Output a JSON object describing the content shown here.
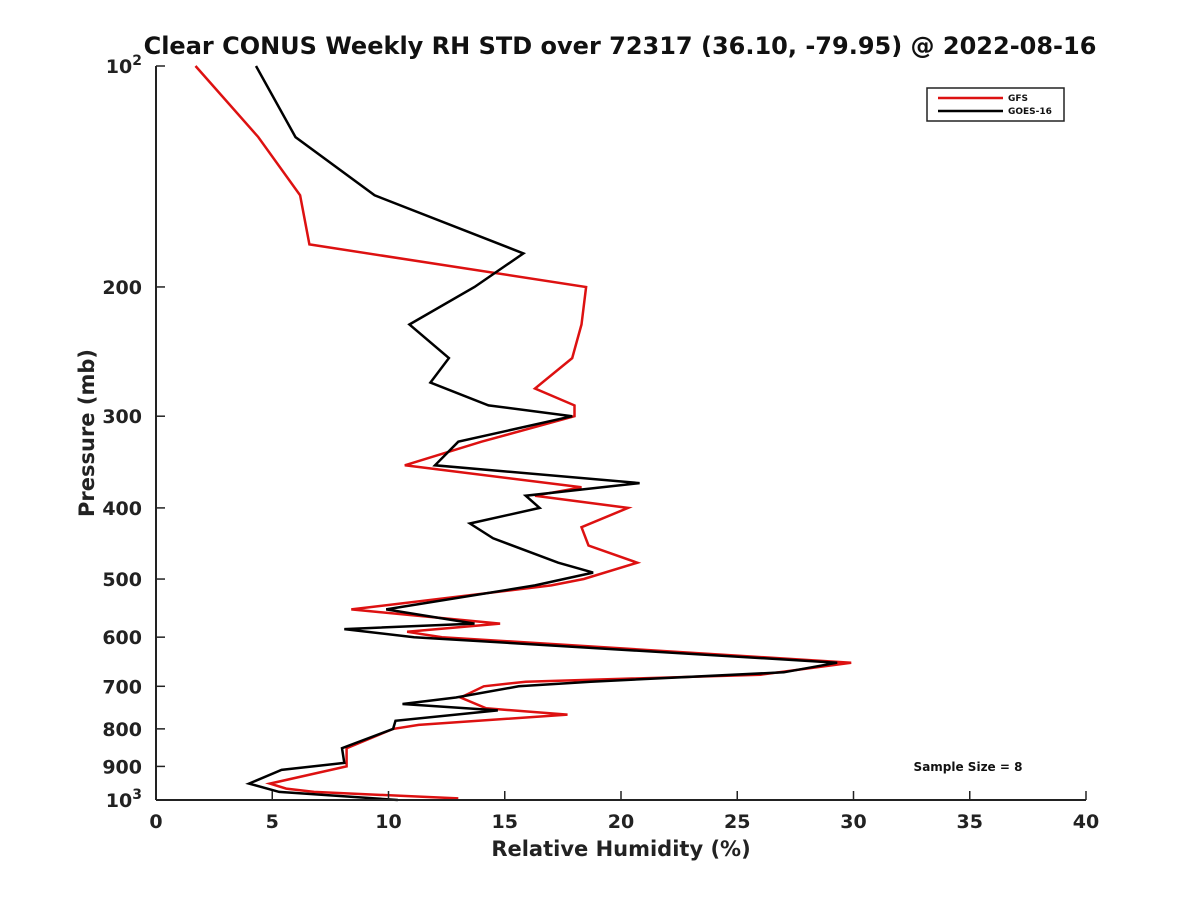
{
  "chart_data": {
    "type": "line",
    "title": "Clear CONUS Weekly RH STD over 72317 (36.10, -79.95) @ 2022-08-16",
    "xlabel": "Relative Humidity (%)",
    "ylabel": "Pressure (mb)",
    "xlim": [
      0,
      40
    ],
    "ylim": [
      100,
      1000
    ],
    "y_scale": "log",
    "y_reversed": true,
    "grid": false,
    "legend_position": "top-right",
    "x_ticks": [
      "0",
      "5",
      "10",
      "15",
      "20",
      "25",
      "30",
      "35",
      "40"
    ],
    "y_ticks": [
      {
        "value": 100,
        "base": "10",
        "exp": "2"
      },
      {
        "value": 200,
        "label": "200"
      },
      {
        "value": 300,
        "label": "300"
      },
      {
        "value": 400,
        "label": "400"
      },
      {
        "value": 500,
        "label": "500"
      },
      {
        "value": 600,
        "label": "600"
      },
      {
        "value": 700,
        "label": "700"
      },
      {
        "value": 800,
        "label": "800"
      },
      {
        "value": 900,
        "label": "900"
      },
      {
        "value": 1000,
        "base": "10",
        "exp": "3"
      }
    ],
    "annotation": "Sample Size = 8",
    "series": [
      {
        "name": "GFS",
        "color": "#dd1111",
        "points": [
          [
            1.7,
            100
          ],
          [
            4.4,
            125
          ],
          [
            6.2,
            150
          ],
          [
            6.6,
            175
          ],
          [
            18.5,
            200
          ],
          [
            18.3,
            225
          ],
          [
            17.9,
            250
          ],
          [
            16.3,
            275
          ],
          [
            18.0,
            290
          ],
          [
            18.0,
            300
          ],
          [
            14.0,
            325
          ],
          [
            10.7,
            350
          ],
          [
            18.3,
            375
          ],
          [
            16.3,
            385
          ],
          [
            20.3,
            400
          ],
          [
            18.3,
            425
          ],
          [
            18.6,
            450
          ],
          [
            20.7,
            475
          ],
          [
            18.4,
            500
          ],
          [
            17.0,
            510
          ],
          [
            8.4,
            550
          ],
          [
            14.8,
            575
          ],
          [
            10.8,
            590
          ],
          [
            12.3,
            600
          ],
          [
            29.9,
            650
          ],
          [
            26.0,
            675
          ],
          [
            15.9,
            690
          ],
          [
            14.1,
            700
          ],
          [
            13.1,
            725
          ],
          [
            14.2,
            750
          ],
          [
            17.7,
            765
          ],
          [
            11.3,
            790
          ],
          [
            10.2,
            800
          ],
          [
            8.2,
            850
          ],
          [
            8.2,
            900
          ],
          [
            4.9,
            950
          ],
          [
            5.6,
            965
          ],
          [
            6.8,
            975
          ],
          [
            13.0,
            995
          ]
        ]
      },
      {
        "name": "GOES-16",
        "color": "#000000",
        "points": [
          [
            4.3,
            100
          ],
          [
            6.0,
            125
          ],
          [
            9.4,
            150
          ],
          [
            15.8,
            180
          ],
          [
            13.7,
            200
          ],
          [
            10.9,
            225
          ],
          [
            12.6,
            250
          ],
          [
            11.8,
            270
          ],
          [
            14.3,
            290
          ],
          [
            17.9,
            300
          ],
          [
            13.0,
            325
          ],
          [
            12.0,
            350
          ],
          [
            20.8,
            370
          ],
          [
            15.9,
            385
          ],
          [
            16.5,
            400
          ],
          [
            13.5,
            420
          ],
          [
            14.5,
            440
          ],
          [
            17.3,
            475
          ],
          [
            18.8,
            490
          ],
          [
            16.3,
            510
          ],
          [
            9.9,
            550
          ],
          [
            13.7,
            575
          ],
          [
            8.1,
            585
          ],
          [
            11.1,
            600
          ],
          [
            29.3,
            650
          ],
          [
            27.0,
            670
          ],
          [
            18.7,
            690
          ],
          [
            15.6,
            700
          ],
          [
            12.9,
            725
          ],
          [
            10.6,
            740
          ],
          [
            14.7,
            755
          ],
          [
            10.3,
            780
          ],
          [
            10.2,
            800
          ],
          [
            8.0,
            850
          ],
          [
            8.1,
            890
          ],
          [
            5.4,
            910
          ],
          [
            4.0,
            950
          ],
          [
            5.3,
            975
          ],
          [
            10.4,
            1000
          ]
        ]
      }
    ]
  }
}
